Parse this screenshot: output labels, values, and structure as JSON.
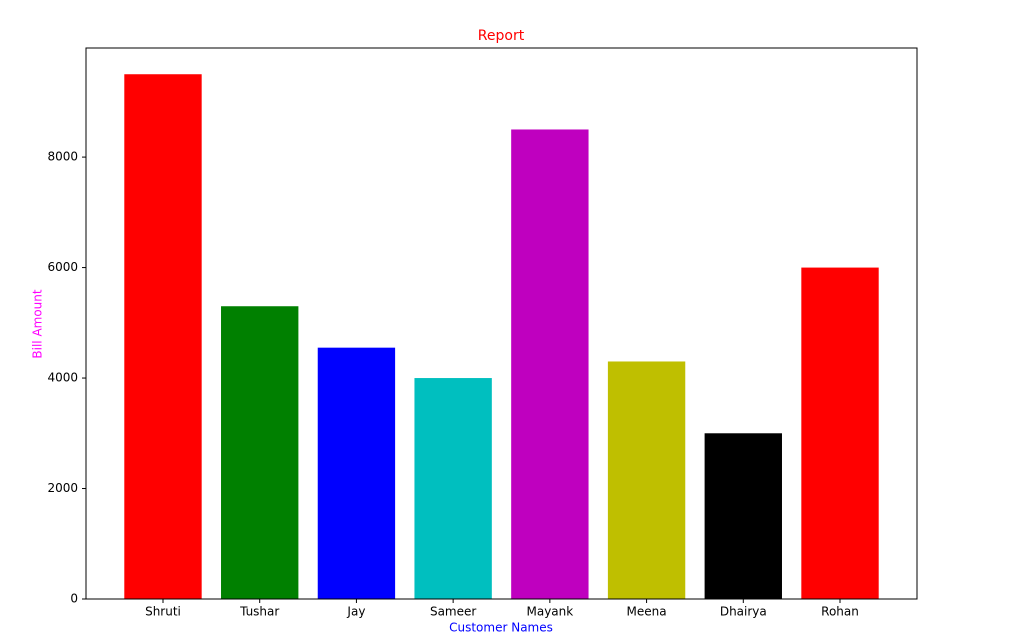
{
  "chart_data": {
    "type": "bar",
    "title": "Report",
    "title_color": "#ff0000",
    "xlabel": "Customer Names",
    "xlabel_color": "#0000ff",
    "ylabel": "Bill Amount",
    "ylabel_color": "#ff00ff",
    "categories": [
      "Shruti",
      "Tushar",
      "Jay",
      "Sameer",
      "Mayank",
      "Meena",
      "Dhairya",
      "Rohan"
    ],
    "values": [
      9500,
      5300,
      4550,
      4000,
      8500,
      4300,
      3000,
      6000
    ],
    "colors": [
      "#ff0000",
      "#008000",
      "#0000ff",
      "#00bfbf",
      "#bf00bf",
      "#bfbf00",
      "#000000",
      "#ff0000"
    ],
    "ylim": [
      0,
      9975
    ],
    "yticks": [
      0,
      2000,
      4000,
      6000,
      8000
    ],
    "grid": false
  }
}
